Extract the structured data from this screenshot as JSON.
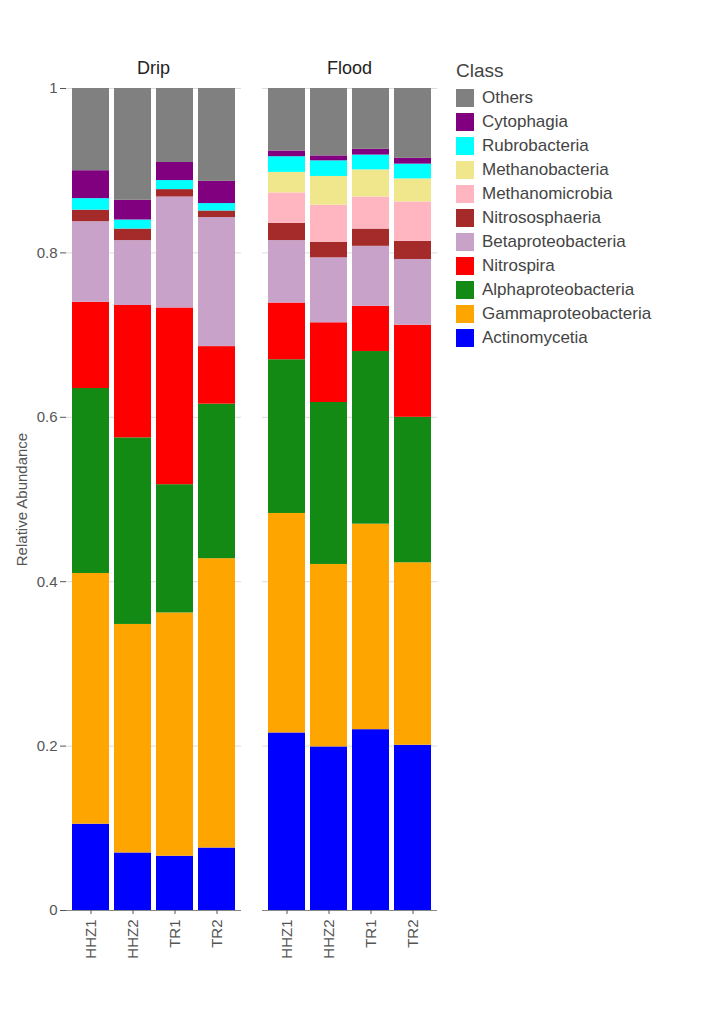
{
  "chart_data": [
    {
      "type": "bar",
      "title": "Drip",
      "stacked": true,
      "y_label": "Relative Abundance",
      "grid": true,
      "categories": [
        "HHZ1",
        "HHZ2",
        "TR1",
        "TR2"
      ],
      "ylim": [
        0,
        1
      ],
      "yticks": [
        0,
        0.2,
        0.4,
        0.6,
        0.8,
        1
      ],
      "series": [
        {
          "name": "Actinomycetia",
          "color": "#0000ff",
          "values": [
            0.105,
            0.07,
            0.066,
            0.076
          ]
        },
        {
          "name": "Gammaproteobacteria",
          "color": "#ffa500",
          "values": [
            0.305,
            0.278,
            0.296,
            0.352
          ]
        },
        {
          "name": "Alphaproteobacteria",
          "color": "#138a13",
          "values": [
            0.225,
            0.227,
            0.156,
            0.188
          ]
        },
        {
          "name": "Nitrospira",
          "color": "#ff0000",
          "values": [
            0.105,
            0.161,
            0.215,
            0.07
          ]
        },
        {
          "name": "Betaproteobacteria",
          "color": "#c8a2c8",
          "values": [
            0.098,
            0.079,
            0.135,
            0.157
          ]
        },
        {
          "name": "Nitrososphaeria",
          "color": "#a52a2a",
          "values": [
            0.014,
            0.014,
            0.009,
            0.008
          ]
        },
        {
          "name": "Methanomicrobia",
          "color": "#ffb6c1",
          "values": [
            0,
            0,
            0,
            0
          ]
        },
        {
          "name": "Methanobacteria",
          "color": "#f0e68c",
          "values": [
            0,
            0,
            0,
            0
          ]
        },
        {
          "name": "Rubrobacteria",
          "color": "#00ffff",
          "values": [
            0.014,
            0.011,
            0.011,
            0.009
          ]
        },
        {
          "name": "Cytophagia",
          "color": "#800080",
          "values": [
            0.034,
            0.024,
            0.022,
            0.027
          ]
        },
        {
          "name": "Others",
          "color": "#808080",
          "values": [
            0.1,
            0.136,
            0.09,
            0.113
          ]
        }
      ]
    },
    {
      "type": "bar",
      "title": "Flood",
      "stacked": true,
      "grid": true,
      "legend": "right",
      "legend_title": "Class",
      "categories": [
        "HHZ1",
        "HHZ2",
        "TR1",
        "TR2"
      ],
      "ylim": [
        0,
        1
      ],
      "yticks": [
        0,
        0.2,
        0.4,
        0.6,
        0.8,
        1
      ],
      "tick_labels": "x",
      "series": [
        {
          "name": "Actinomycetia",
          "color": "#0000ff",
          "values": [
            0.216,
            0.199,
            0.22,
            0.201
          ]
        },
        {
          "name": "Gammaproteobacteria",
          "color": "#ffa500",
          "values": [
            0.267,
            0.222,
            0.25,
            0.222
          ]
        },
        {
          "name": "Alphaproteobacteria",
          "color": "#138a13",
          "values": [
            0.187,
            0.197,
            0.21,
            0.177
          ]
        },
        {
          "name": "Nitrospira",
          "color": "#ff0000",
          "values": [
            0.069,
            0.097,
            0.055,
            0.112
          ]
        },
        {
          "name": "Betaproteobacteria",
          "color": "#c8a2c8",
          "values": [
            0.076,
            0.079,
            0.073,
            0.08
          ]
        },
        {
          "name": "Nitrososphaeria",
          "color": "#a52a2a",
          "values": [
            0.021,
            0.019,
            0.021,
            0.022
          ]
        },
        {
          "name": "Methanomicrobia",
          "color": "#ffb6c1",
          "values": [
            0.037,
            0.045,
            0.039,
            0.048
          ]
        },
        {
          "name": "Methanobacteria",
          "color": "#f0e68c",
          "values": [
            0.025,
            0.035,
            0.033,
            0.028
          ]
        },
        {
          "name": "Rubrobacteria",
          "color": "#00ffff",
          "values": [
            0.019,
            0.019,
            0.018,
            0.018
          ]
        },
        {
          "name": "Cytophagia",
          "color": "#800080",
          "values": [
            0.007,
            0.006,
            0.007,
            0.007
          ]
        },
        {
          "name": "Others",
          "color": "#808080",
          "values": [
            0.076,
            0.082,
            0.074,
            0.085
          ]
        }
      ]
    }
  ]
}
